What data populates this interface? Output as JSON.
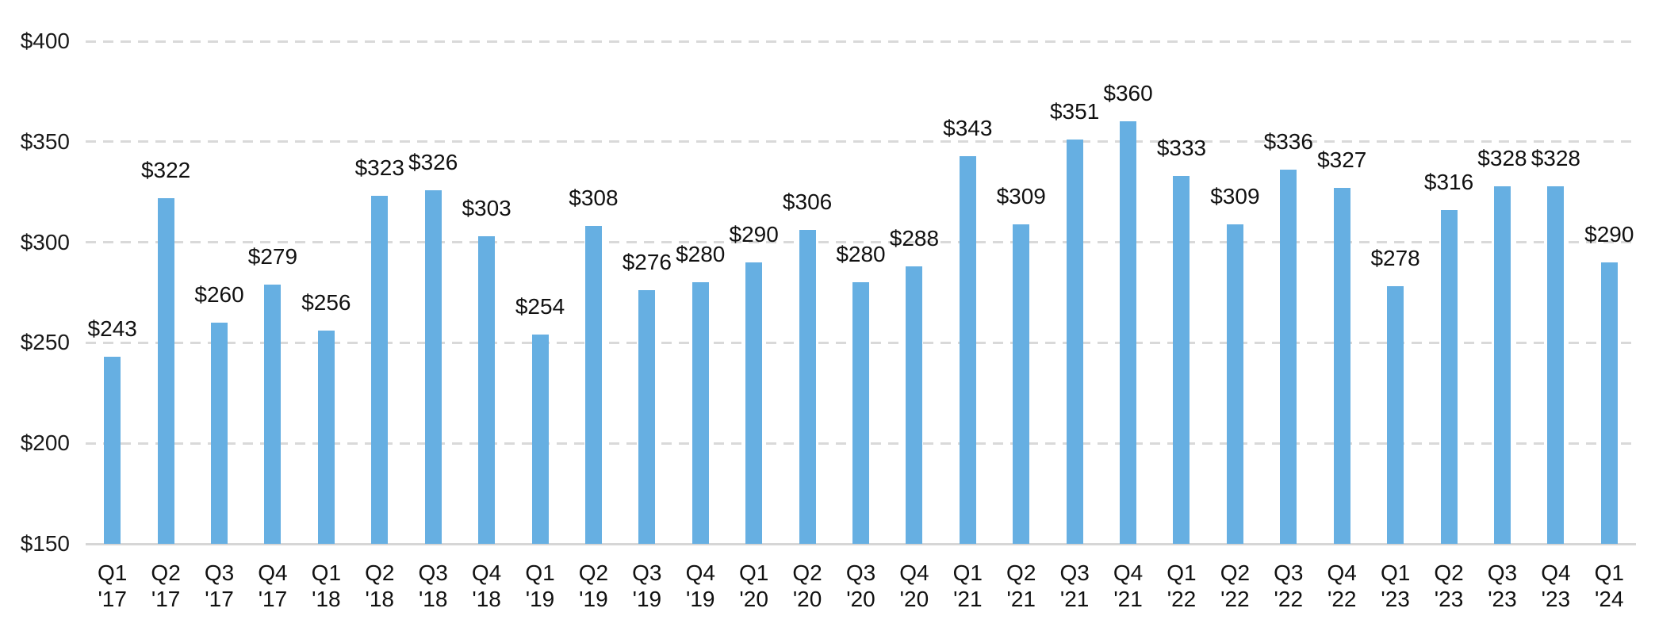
{
  "chart_data": {
    "type": "bar",
    "title": "",
    "xlabel": "",
    "ylabel": "",
    "ylim": [
      150,
      400
    ],
    "ytick_step": 50,
    "ytick_labels": [
      "$150",
      "$200",
      "$250",
      "$300",
      "$350",
      "$400"
    ],
    "grid": "horizontal-dashed",
    "legend": "none",
    "bar_color": "#66afe2",
    "gridline_color": "#d9d9d9",
    "axis_line_color": "#d6d6d6",
    "label_color": "#111111",
    "value_prefix": "$",
    "points": [
      {
        "q": "Q1",
        "yr": "'17",
        "v": 243,
        "label": "$243"
      },
      {
        "q": "Q2",
        "yr": "'17",
        "v": 322,
        "label": "$322"
      },
      {
        "q": "Q3",
        "yr": "'17",
        "v": 260,
        "label": "$260"
      },
      {
        "q": "Q4",
        "yr": "'17",
        "v": 279,
        "label": "$279"
      },
      {
        "q": "Q1",
        "yr": "'18",
        "v": 256,
        "label": "$256"
      },
      {
        "q": "Q2",
        "yr": "'18",
        "v": 323,
        "label": "$323"
      },
      {
        "q": "Q3",
        "yr": "'18",
        "v": 326,
        "label": "$326"
      },
      {
        "q": "Q4",
        "yr": "'18",
        "v": 303,
        "label": "$303"
      },
      {
        "q": "Q1",
        "yr": "'19",
        "v": 254,
        "label": "$254"
      },
      {
        "q": "Q2",
        "yr": "'19",
        "v": 308,
        "label": "$308"
      },
      {
        "q": "Q3",
        "yr": "'19",
        "v": 276,
        "label": "$276"
      },
      {
        "q": "Q4",
        "yr": "'19",
        "v": 280,
        "label": "$280"
      },
      {
        "q": "Q1",
        "yr": "'20",
        "v": 290,
        "label": "$290"
      },
      {
        "q": "Q2",
        "yr": "'20",
        "v": 306,
        "label": "$306"
      },
      {
        "q": "Q3",
        "yr": "'20",
        "v": 280,
        "label": "$280"
      },
      {
        "q": "Q4",
        "yr": "'20",
        "v": 288,
        "label": "$288"
      },
      {
        "q": "Q1",
        "yr": "'21",
        "v": 343,
        "label": "$343"
      },
      {
        "q": "Q2",
        "yr": "'21",
        "v": 309,
        "label": "$309"
      },
      {
        "q": "Q3",
        "yr": "'21",
        "v": 351,
        "label": "$351"
      },
      {
        "q": "Q4",
        "yr": "'21",
        "v": 360,
        "label": "$360"
      },
      {
        "q": "Q1",
        "yr": "'22",
        "v": 333,
        "label": "$333"
      },
      {
        "q": "Q2",
        "yr": "'22",
        "v": 309,
        "label": "$309"
      },
      {
        "q": "Q3",
        "yr": "'22",
        "v": 336,
        "label": "$336"
      },
      {
        "q": "Q4",
        "yr": "'22",
        "v": 327,
        "label": "$327"
      },
      {
        "q": "Q1",
        "yr": "'23",
        "v": 278,
        "label": "$278"
      },
      {
        "q": "Q2",
        "yr": "'23",
        "v": 316,
        "label": "$316"
      },
      {
        "q": "Q3",
        "yr": "'23",
        "v": 328,
        "label": "$328"
      },
      {
        "q": "Q4",
        "yr": "'23",
        "v": 328,
        "label": "$328"
      },
      {
        "q": "Q1",
        "yr": "'24",
        "v": 290,
        "label": "$290"
      }
    ]
  }
}
